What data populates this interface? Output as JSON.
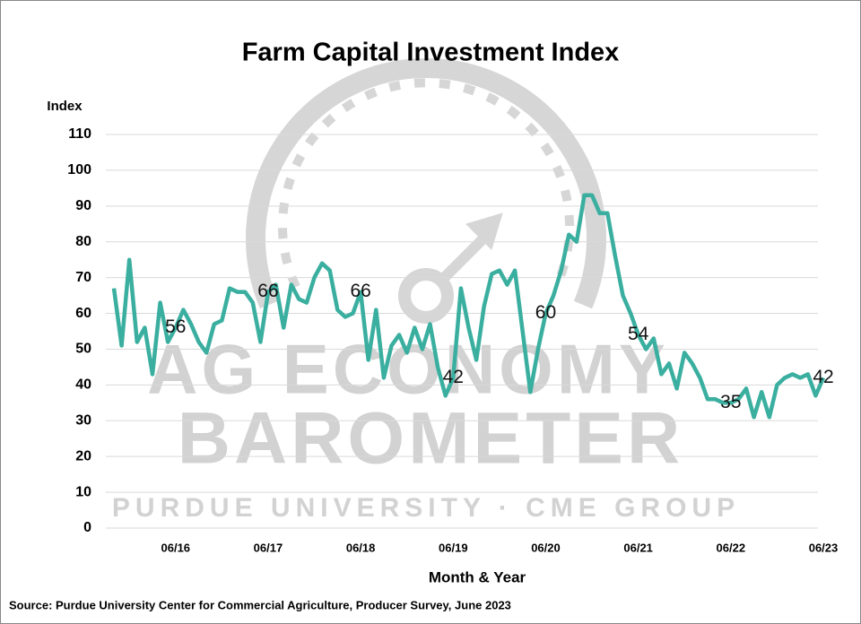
{
  "chart_data": {
    "type": "line",
    "title": "Farm Capital Investment Index",
    "y_label": "Index",
    "x_label": "Month & Year",
    "source": "Source: Purdue University Center for Commercial Agriculture, Producer Survey, June 2023",
    "watermark": [
      "AG ECONOMY",
      "BAROMETER",
      "PURDUE UNIVERSITY · CME GROUP"
    ],
    "categories": [
      null,
      null,
      null,
      null,
      null,
      null,
      null,
      null,
      "06/16",
      null,
      null,
      null,
      null,
      null,
      null,
      null,
      null,
      null,
      null,
      null,
      "06/17",
      null,
      null,
      null,
      null,
      null,
      null,
      null,
      null,
      null,
      null,
      null,
      "06/18",
      null,
      null,
      null,
      null,
      null,
      null,
      null,
      null,
      null,
      null,
      null,
      "06/19",
      null,
      null,
      null,
      null,
      null,
      null,
      null,
      null,
      null,
      null,
      null,
      "06/20",
      null,
      null,
      null,
      null,
      null,
      null,
      null,
      null,
      null,
      null,
      null,
      "06/21",
      null,
      null,
      null,
      null,
      null,
      null,
      null,
      null,
      null,
      null,
      null,
      "06/22",
      null,
      null,
      null,
      null,
      null,
      null,
      null,
      null,
      null,
      null,
      null,
      "06/23"
    ],
    "series": [
      {
        "name": "Farm Capital Investment Index",
        "color": "#3aafa0",
        "values": [
          67,
          51,
          75,
          52,
          56,
          43,
          63,
          52,
          56,
          61,
          57,
          52,
          49,
          57,
          58,
          67,
          66,
          66,
          63,
          52,
          66,
          68,
          56,
          68,
          64,
          63,
          70,
          74,
          72,
          61,
          59,
          60,
          66,
          47,
          61,
          42,
          51,
          54,
          49,
          56,
          50,
          57,
          45,
          37,
          42,
          67,
          56,
          47,
          62,
          71,
          72,
          68,
          72,
          55,
          38,
          50,
          60,
          65,
          72,
          82,
          80,
          93,
          93,
          88,
          88,
          76,
          65,
          60,
          54,
          50,
          53,
          43,
          46,
          39,
          49,
          46,
          42,
          36,
          36,
          35,
          35,
          36,
          39,
          31,
          38,
          31,
          40,
          42,
          43,
          42,
          43,
          37,
          42
        ]
      }
    ],
    "ylim": [
      0,
      110
    ],
    "yticks": [
      0,
      10,
      20,
      30,
      40,
      50,
      60,
      70,
      80,
      90,
      100,
      110
    ],
    "grid": true
  }
}
